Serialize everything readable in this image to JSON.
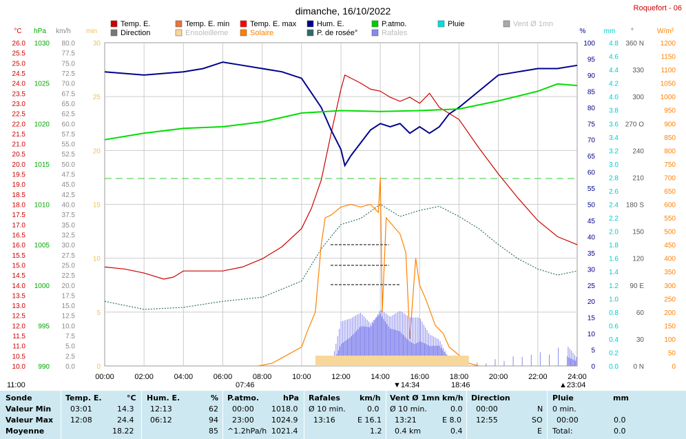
{
  "title": "dimanche, 16/10/2022",
  "station": "Roquefort - 06",
  "legend": [
    {
      "label": "Temp. E.",
      "color": "#cc0000"
    },
    {
      "label": "Temp. E. min",
      "color": "#e8743b"
    },
    {
      "label": "Temp. E. max",
      "color": "#ff0000"
    },
    {
      "label": "Hum. E.",
      "color": "#00008b"
    },
    {
      "label": "P.atmo.",
      "color": "#00cc00"
    },
    {
      "label": "Pluie",
      "color": "#00dddd"
    },
    {
      "label": "Vent Ø 1mn",
      "color": "#aaaaaa"
    },
    {
      "label": "Direction",
      "color": "#777777"
    },
    {
      "label": "Ensoleilleme",
      "color": "#f7d79a"
    },
    {
      "label": "Solaire",
      "color": "#ff8000"
    },
    {
      "label": "P. de rosée°",
      "color": "#2e6b6b"
    },
    {
      "label": "Rafales",
      "color": "#8888ee"
    }
  ],
  "axes": {
    "temp": {
      "unit": "°C",
      "ticks": [
        "26.0",
        "25.5",
        "25.0",
        "24.5",
        "24.0",
        "23.5",
        "23.0",
        "22.5",
        "22.0",
        "21.5",
        "21.0",
        "20.5",
        "20.0",
        "19.5",
        "19.0",
        "18.5",
        "18.0",
        "17.5",
        "17.0",
        "16.5",
        "16.0",
        "15.5",
        "15.0",
        "14.5",
        "14.0",
        "13.5",
        "13.0",
        "12.5",
        "12.0",
        "11.5",
        "11.0",
        "10.5",
        "10.0"
      ],
      "color": "#cc0000"
    },
    "press": {
      "unit": "hPa",
      "ticks": [
        "1030",
        "1025",
        "1020",
        "1015",
        "1010",
        "1005",
        "1000",
        "995",
        "990"
      ],
      "color": "#00aa00"
    },
    "wind": {
      "unit": "km/h",
      "ticks": [
        "80.0",
        "77.5",
        "75.0",
        "72.5",
        "70.0",
        "67.5",
        "65.0",
        "62.5",
        "60.0",
        "57.5",
        "55.0",
        "52.5",
        "50.0",
        "47.5",
        "45.0",
        "42.5",
        "40.0",
        "37.5",
        "35.0",
        "32.5",
        "30.0",
        "27.5",
        "25.0",
        "22.5",
        "20.0",
        "17.5",
        "15.0",
        "12.5",
        "10.0",
        "7.5",
        "5.0",
        "2.5",
        "0.0"
      ],
      "color": "#888888"
    },
    "sun": {
      "unit": "min",
      "ticks": [
        "30",
        "25",
        "20",
        "15",
        "10",
        "5",
        "0"
      ],
      "color": "#f0c060"
    },
    "hum": {
      "unit": "%",
      "ticks": [
        "100",
        "95",
        "90",
        "85",
        "80",
        "75",
        "70",
        "65",
        "60",
        "55",
        "50",
        "45",
        "40",
        "35",
        "30",
        "25",
        "20",
        "15",
        "10",
        "5",
        "0"
      ],
      "color": "#00008b"
    },
    "rain": {
      "unit": "mm",
      "ticks": [
        "4.8",
        "4.6",
        "4.4",
        "4.2",
        "4.0",
        "3.8",
        "3.6",
        "3.4",
        "3.2",
        "3.0",
        "2.8",
        "2.6",
        "2.4",
        "2.2",
        "2.0",
        "1.8",
        "1.6",
        "1.4",
        "1.2",
        "1.0",
        "0.8",
        "0.6",
        "0.4",
        "0.2",
        "0.0"
      ],
      "color": "#00cccc"
    },
    "dir": {
      "unit": "°",
      "ticks": [
        "360 N",
        "330",
        "300",
        "270 O",
        "240",
        "210",
        "180 S",
        "150",
        "120",
        "90 E",
        "60",
        "30",
        "0 N"
      ],
      "color": "#555555"
    },
    "solar": {
      "unit": "W/m²",
      "ticks": [
        "1200",
        "1150",
        "1100",
        "1050",
        "1000",
        "950",
        "900",
        "850",
        "800",
        "750",
        "700",
        "650",
        "600",
        "550",
        "500",
        "450",
        "400",
        "350",
        "300",
        "250",
        "200",
        "150",
        "100",
        "50",
        "0"
      ],
      "color": "#ff8000"
    },
    "time": [
      "00:00",
      "02:00",
      "04:00",
      "06:00",
      "08:00",
      "10:00",
      "12:00",
      "14:00",
      "16:00",
      "18:00",
      "20:00",
      "22:00",
      "24:00"
    ]
  },
  "markers": {
    "moonrise": "11:00",
    "sunrise": "07:46",
    "noon": "14:34",
    "sunset": "18:46",
    "moonset": "23:04"
  },
  "chart_data": {
    "type": "line",
    "title": "dimanche, 16/10/2022",
    "x_unit": "hour",
    "series": [
      {
        "name": "Temp. E.",
        "unit": "°C",
        "points": [
          [
            0,
            14.9
          ],
          [
            1,
            14.8
          ],
          [
            2,
            14.6
          ],
          [
            3,
            14.3
          ],
          [
            3.5,
            14.4
          ],
          [
            4,
            14.7
          ],
          [
            5,
            14.7
          ],
          [
            6,
            14.7
          ],
          [
            7,
            14.9
          ],
          [
            8,
            15.3
          ],
          [
            9,
            15.9
          ],
          [
            10,
            16.8
          ],
          [
            10.5,
            17.8
          ],
          [
            11,
            19.2
          ],
          [
            11.5,
            21.5
          ],
          [
            12,
            23.7
          ],
          [
            12.2,
            24.4
          ],
          [
            13,
            24.0
          ],
          [
            13.5,
            23.7
          ],
          [
            14,
            23.6
          ],
          [
            14.5,
            23.3
          ],
          [
            15,
            23.1
          ],
          [
            15.5,
            23.3
          ],
          [
            16,
            23.0
          ],
          [
            16.5,
            23.5
          ],
          [
            17,
            22.8
          ],
          [
            17.5,
            22.5
          ],
          [
            18,
            22.2
          ],
          [
            19,
            20.8
          ],
          [
            20,
            19.5
          ],
          [
            21,
            18.3
          ],
          [
            22,
            17.2
          ],
          [
            23,
            16.4
          ],
          [
            24,
            16.0
          ]
        ]
      },
      {
        "name": "Hum. E.",
        "unit": "%",
        "points": [
          [
            0,
            91
          ],
          [
            2,
            90
          ],
          [
            4,
            91
          ],
          [
            5,
            92
          ],
          [
            6,
            94
          ],
          [
            7,
            93
          ],
          [
            8,
            92
          ],
          [
            9,
            91
          ],
          [
            10,
            89
          ],
          [
            11,
            80
          ],
          [
            11.5,
            73
          ],
          [
            12,
            67
          ],
          [
            12.2,
            62
          ],
          [
            12.5,
            65
          ],
          [
            13,
            69
          ],
          [
            13.5,
            73
          ],
          [
            14,
            75
          ],
          [
            14.5,
            74
          ],
          [
            15,
            75
          ],
          [
            15.5,
            72
          ],
          [
            16,
            74
          ],
          [
            16.5,
            72
          ],
          [
            17,
            74
          ],
          [
            17.5,
            78
          ],
          [
            18,
            80
          ],
          [
            19,
            85
          ],
          [
            20,
            90
          ],
          [
            21,
            91
          ],
          [
            22,
            92
          ],
          [
            23,
            92
          ],
          [
            24,
            93
          ]
        ]
      },
      {
        "name": "P.atmo.",
        "unit": "hPa",
        "points": [
          [
            0,
            1018.0
          ],
          [
            2,
            1018.8
          ],
          [
            4,
            1019.4
          ],
          [
            6,
            1019.6
          ],
          [
            8,
            1020.2
          ],
          [
            10,
            1021.3
          ],
          [
            12,
            1021.6
          ],
          [
            14,
            1021.5
          ],
          [
            16,
            1021.6
          ],
          [
            18,
            1021.8
          ],
          [
            20,
            1022.8
          ],
          [
            22,
            1024.0
          ],
          [
            23,
            1024.9
          ],
          [
            24,
            1024.7
          ]
        ]
      },
      {
        "name": "P. de rosée°",
        "unit": "°C",
        "points": [
          [
            0,
            13.2
          ],
          [
            2,
            12.8
          ],
          [
            4,
            12.9
          ],
          [
            6,
            13.2
          ],
          [
            8,
            13.4
          ],
          [
            10,
            14.2
          ],
          [
            11,
            15.8
          ],
          [
            12,
            17.0
          ],
          [
            13,
            17.3
          ],
          [
            14,
            18.0
          ],
          [
            15,
            17.4
          ],
          [
            16,
            17.7
          ],
          [
            17,
            17.9
          ],
          [
            18,
            17.4
          ],
          [
            19,
            16.8
          ],
          [
            20,
            16.0
          ],
          [
            21,
            15.3
          ],
          [
            22,
            14.8
          ],
          [
            23,
            14.5
          ],
          [
            24,
            14.7
          ]
        ]
      },
      {
        "name": "Solaire",
        "unit": "W/m²",
        "points": [
          [
            7.8,
            0
          ],
          [
            8.5,
            10
          ],
          [
            9,
            30
          ],
          [
            10,
            70
          ],
          [
            10.3,
            130
          ],
          [
            10.7,
            200
          ],
          [
            11,
            450
          ],
          [
            11.2,
            550
          ],
          [
            11.5,
            560
          ],
          [
            12,
            590
          ],
          [
            12.5,
            600
          ],
          [
            13,
            590
          ],
          [
            13.5,
            600
          ],
          [
            13.9,
            570
          ],
          [
            14,
            700
          ],
          [
            14.1,
            200
          ],
          [
            14.3,
            550
          ],
          [
            15,
            490
          ],
          [
            15.3,
            420
          ],
          [
            15.5,
            100
          ],
          [
            15.8,
            400
          ],
          [
            16,
            300
          ],
          [
            16.3,
            250
          ],
          [
            16.8,
            150
          ],
          [
            17.2,
            120
          ],
          [
            17.5,
            70
          ],
          [
            18,
            40
          ],
          [
            18.5,
            10
          ],
          [
            19,
            0
          ]
        ]
      },
      {
        "name": "Rafales",
        "unit": "km/h",
        "points": [
          [
            11.5,
            0
          ],
          [
            12,
            11
          ],
          [
            12.5,
            12
          ],
          [
            13,
            14
          ],
          [
            13.5,
            12
          ],
          [
            14,
            16
          ],
          [
            14.5,
            13
          ],
          [
            15,
            14
          ],
          [
            15.5,
            12
          ],
          [
            16,
            12
          ],
          [
            16.5,
            8
          ],
          [
            17,
            7
          ],
          [
            17.5,
            2
          ],
          [
            18,
            0
          ],
          [
            23.5,
            5
          ],
          [
            24,
            2
          ]
        ]
      },
      {
        "name": "Ensoleilleme",
        "unit": "min",
        "points": [
          [
            10.7,
            1
          ],
          [
            11.5,
            1
          ],
          [
            12,
            1
          ],
          [
            13,
            1
          ],
          [
            14,
            1
          ],
          [
            15,
            1
          ],
          [
            16,
            1
          ],
          [
            17,
            1
          ],
          [
            17.7,
            1
          ],
          [
            18,
            1
          ],
          [
            18.5,
            1
          ]
        ]
      }
    ],
    "y_min": {
      "temp": 10,
      "press": 990,
      "wind": 0,
      "hum": 0,
      "solar": 0
    },
    "y_max": {
      "temp": 26,
      "press": 1030,
      "wind": 80,
      "hum": 100,
      "solar": 1200
    }
  },
  "summary": {
    "header": [
      "Sonde",
      "Temp. E.",
      "°C",
      "Hum. E.",
      "%",
      "P.atmo.",
      "hPa",
      "Rafales",
      "km/h",
      "Vent Ø 1mn",
      "km/h",
      "Direction",
      "Pluie",
      "mm"
    ],
    "row_labels": [
      "Valeur Min",
      "Valeur Max",
      "Moyenne"
    ],
    "temp": [
      [
        "03:01",
        "14.3"
      ],
      [
        "12:08",
        "24.4"
      ],
      [
        "",
        "18.22"
      ]
    ],
    "hum": [
      [
        "12:13",
        "62"
      ],
      [
        "06:12",
        "94"
      ],
      [
        "",
        "85"
      ]
    ],
    "press": [
      [
        "00:00",
        "1018.0"
      ],
      [
        "23:00",
        "1024.9"
      ],
      [
        "^1.2hPa/h",
        "1021.4"
      ]
    ],
    "gust": [
      [
        "Ø 10 min.",
        "0.0"
      ],
      [
        "13:16",
        "E 16.1"
      ],
      [
        "",
        "1.2"
      ]
    ],
    "wind": [
      [
        "Ø 10 min.",
        "0.0"
      ],
      [
        "13:21",
        "E 8.0"
      ],
      [
        "0.4 km",
        "0.4"
      ]
    ],
    "dir": [
      [
        "00:00",
        "N"
      ],
      [
        "12:55",
        "SO"
      ],
      [
        "",
        "E"
      ]
    ],
    "rain": [
      [
        "0 min.",
        ""
      ],
      [
        "00:00",
        "0.0"
      ],
      [
        "Total:",
        "0.0"
      ]
    ]
  }
}
